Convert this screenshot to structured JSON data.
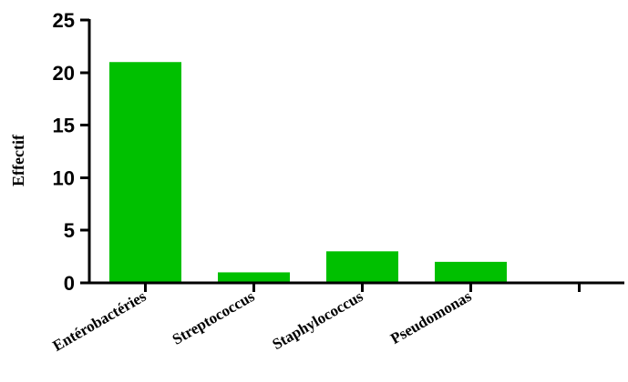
{
  "chart_data": {
    "type": "bar",
    "title": "",
    "xlabel": "",
    "ylabel": "Effectif",
    "categories": [
      "Entérobactéries",
      "Streptococcus",
      "Staphylococcus",
      "Pseudomonas",
      ""
    ],
    "values": [
      21,
      1,
      3,
      2,
      null
    ],
    "ylim": [
      0,
      25
    ],
    "yticks": [
      0,
      5,
      10,
      15,
      20,
      25
    ],
    "grid": false,
    "legend": "none",
    "colors": {
      "bar": "#00c000",
      "axis": "#000000"
    }
  }
}
